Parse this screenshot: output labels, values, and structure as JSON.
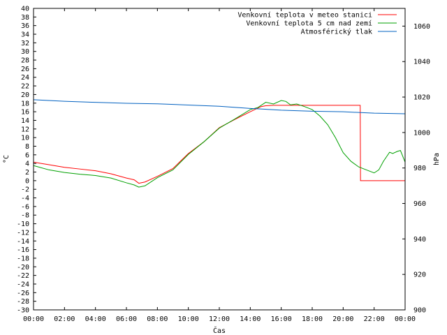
{
  "chart_data": {
    "type": "line",
    "title": "",
    "xlabel": "Čas",
    "ylabel": "°C",
    "y2label": "hPa",
    "x_ticks": [
      "00:00",
      "02:00",
      "04:00",
      "06:00",
      "08:00",
      "10:00",
      "12:00",
      "14:00",
      "16:00",
      "18:00",
      "20:00",
      "22:00",
      "00:00"
    ],
    "x_range": [
      0,
      24
    ],
    "ylim": [
      -30,
      40
    ],
    "y_ticks": [
      -30,
      -28,
      -26,
      -24,
      -22,
      -20,
      -18,
      -16,
      -14,
      -12,
      -10,
      -8,
      -6,
      -4,
      -2,
      0,
      2,
      4,
      6,
      8,
      10,
      12,
      14,
      16,
      18,
      20,
      22,
      24,
      26,
      28,
      30,
      32,
      34,
      36,
      38,
      40
    ],
    "y2lim": [
      900,
      1070
    ],
    "y2_ticks": [
      900,
      920,
      940,
      960,
      980,
      1000,
      1020,
      1040,
      1060
    ],
    "legend_position": "top-right",
    "series": [
      {
        "name": "Venkovní teplota v meteo stanici",
        "color": "#ff0000",
        "axis": "left",
        "points": [
          [
            0,
            4.3
          ],
          [
            1,
            3.7
          ],
          [
            2,
            3.1
          ],
          [
            3,
            2.7
          ],
          [
            4,
            2.3
          ],
          [
            5,
            1.6
          ],
          [
            6,
            0.6
          ],
          [
            6.5,
            0.2
          ],
          [
            6.8,
            -0.6
          ],
          [
            7.2,
            -0.3
          ],
          [
            8,
            1.0
          ],
          [
            9,
            2.8
          ],
          [
            10,
            6.3
          ],
          [
            11,
            9.0
          ],
          [
            12,
            12.3
          ],
          [
            13,
            14.2
          ],
          [
            14,
            16.0
          ],
          [
            14.7,
            17.2
          ],
          [
            15,
            17.4
          ],
          [
            15.5,
            17.5
          ],
          [
            21.1,
            17.5
          ],
          [
            21.12,
            0
          ],
          [
            24,
            0
          ]
        ]
      },
      {
        "name": "Venkovní teplota 5 cm nad zemí",
        "color": "#00a000",
        "axis": "left",
        "points": [
          [
            0,
            3.5
          ],
          [
            1,
            2.5
          ],
          [
            2,
            1.9
          ],
          [
            3,
            1.5
          ],
          [
            4,
            1.2
          ],
          [
            5,
            0.6
          ],
          [
            6,
            -0.5
          ],
          [
            6.5,
            -1.0
          ],
          [
            6.8,
            -1.5
          ],
          [
            7.2,
            -1.2
          ],
          [
            8,
            0.7
          ],
          [
            9,
            2.5
          ],
          [
            10,
            6.1
          ],
          [
            11,
            9.0
          ],
          [
            12,
            12.2
          ],
          [
            13,
            14.3
          ],
          [
            14,
            16.5
          ],
          [
            14.5,
            17.0
          ],
          [
            15,
            18.2
          ],
          [
            15.5,
            17.8
          ],
          [
            16,
            18.6
          ],
          [
            16.3,
            18.4
          ],
          [
            16.6,
            17.6
          ],
          [
            17,
            17.8
          ],
          [
            17.5,
            17.2
          ],
          [
            18,
            16.5
          ],
          [
            18.5,
            15.0
          ],
          [
            19,
            13.0
          ],
          [
            19.5,
            10.0
          ],
          [
            20,
            6.5
          ],
          [
            20.5,
            4.5
          ],
          [
            21,
            3.2
          ],
          [
            21.5,
            2.5
          ],
          [
            22,
            1.8
          ],
          [
            22.3,
            2.5
          ],
          [
            22.6,
            4.5
          ],
          [
            23,
            6.6
          ],
          [
            23.2,
            6.3
          ],
          [
            23.5,
            6.8
          ],
          [
            23.7,
            7.0
          ],
          [
            24,
            4.3
          ]
        ]
      },
      {
        "name": "Atmosférický tlak",
        "color": "#0060c0",
        "axis": "right",
        "points": [
          [
            0,
            1018.5
          ],
          [
            2,
            1017.6
          ],
          [
            4,
            1017.0
          ],
          [
            6,
            1016.5
          ],
          [
            8,
            1016.2
          ],
          [
            10,
            1015.5
          ],
          [
            12,
            1014.8
          ],
          [
            14,
            1013.6
          ],
          [
            16,
            1012.6
          ],
          [
            18,
            1012.0
          ],
          [
            20,
            1011.7
          ],
          [
            22,
            1010.9
          ],
          [
            24,
            1010.6
          ]
        ]
      }
    ]
  }
}
